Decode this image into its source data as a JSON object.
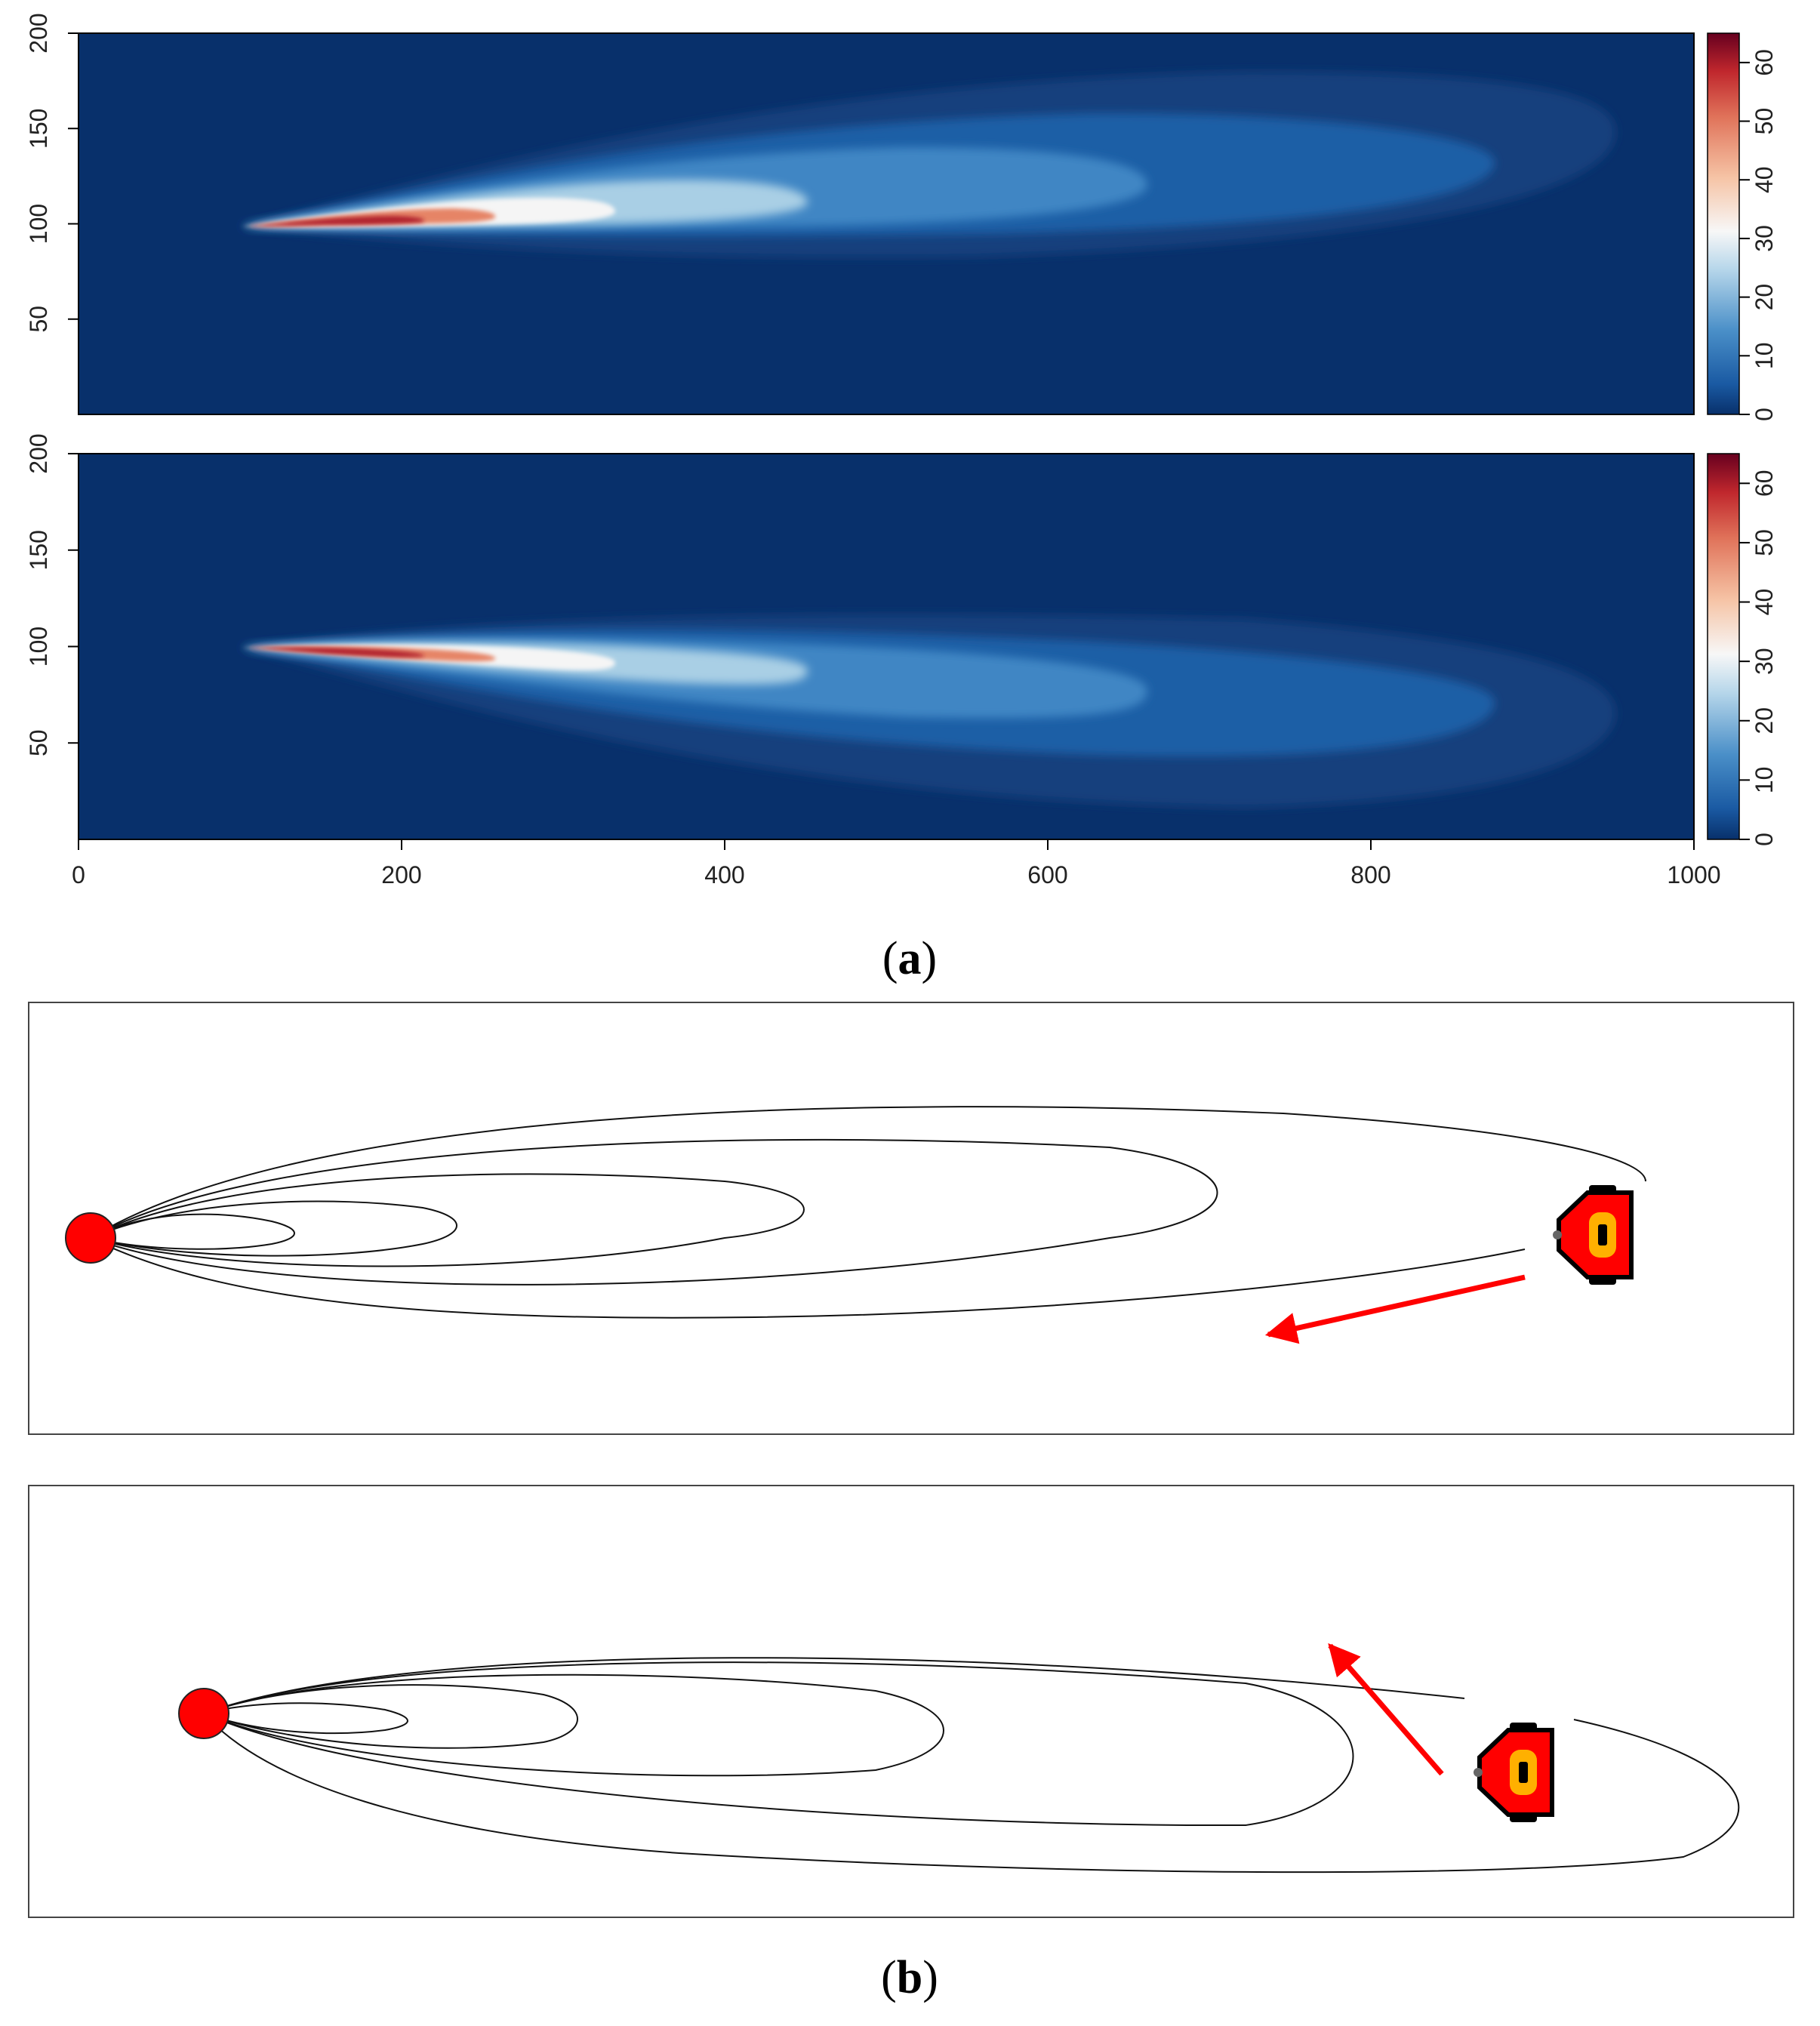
{
  "chart_data": [
    {
      "type": "heatmap",
      "panel": "a-top",
      "x_range": [
        0,
        1000
      ],
      "y_range": [
        0,
        200
      ],
      "xticks": [],
      "yticks": [
        "50",
        "100",
        "150",
        "200"
      ],
      "colorbar": {
        "range": [
          0,
          65
        ],
        "ticks": [
          "0",
          "10",
          "20",
          "30",
          "40",
          "50",
          "60"
        ]
      },
      "plume": {
        "source": [
          105,
          100
        ],
        "peak_value": 65,
        "max_extent_x": 960,
        "centerline_end_y": 135,
        "direction": "up-right"
      }
    },
    {
      "type": "heatmap",
      "panel": "a-bottom",
      "x_range": [
        0,
        1000
      ],
      "y_range": [
        0,
        200
      ],
      "xticks": [
        "0",
        "200",
        "400",
        "600",
        "800",
        "1000"
      ],
      "yticks": [
        "50",
        "100",
        "150",
        "200"
      ],
      "colorbar": {
        "range": [
          0,
          65
        ],
        "ticks": [
          "0",
          "10",
          "20",
          "30",
          "40",
          "50",
          "60"
        ]
      },
      "plume": {
        "source": [
          105,
          100
        ],
        "peak_value": 65,
        "max_extent_x": 960,
        "centerline_end_y": 65,
        "direction": "down-right"
      }
    }
  ],
  "colors": {
    "background_low": "#08306b",
    "mid": "#f7f7f7",
    "high": "#67001f",
    "source_marker": "#ff0000",
    "arrow": "#ff0000",
    "robot_body": "#ff0000",
    "robot_eye": "#ffb000",
    "robot_wheels": "#000000"
  },
  "diagram": {
    "panels": [
      {
        "id": "b-top",
        "contour_count": 5,
        "robot_icon": "robot-icon",
        "arrow_direction": "down-left"
      },
      {
        "id": "b-bottom",
        "contour_count": 5,
        "robot_icon": "robot-icon",
        "arrow_direction": "up-left"
      }
    ]
  },
  "captions": {
    "a": "(a)",
    "b": "(b)"
  },
  "caption_letters": {
    "a": "a",
    "b": "b"
  }
}
